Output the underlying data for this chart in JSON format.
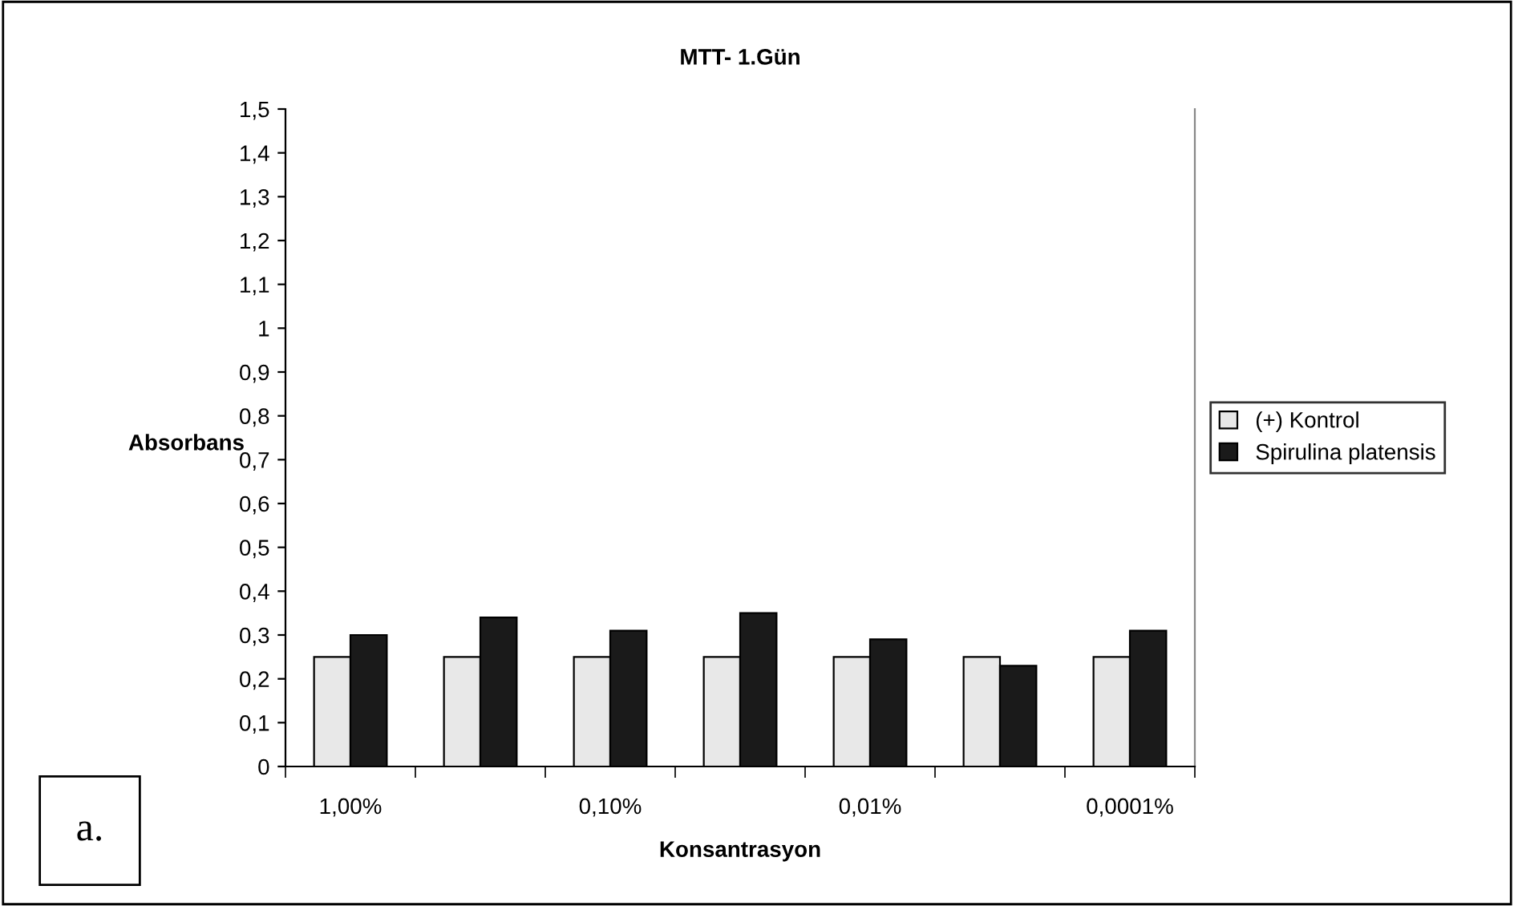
{
  "chart_data": {
    "type": "bar",
    "title": "MTT- 1.Gün",
    "xlabel": "Konsantrasyon",
    "ylabel": "Absorbans",
    "categories": [
      "1,00%",
      null,
      "0,10%",
      null,
      "0,01%",
      null,
      "0,0001%"
    ],
    "series": [
      {
        "name": "(+) Kontrol",
        "color": "#e8e8e8",
        "values": [
          0.25,
          0.25,
          0.25,
          0.25,
          0.25,
          0.25,
          0.25
        ]
      },
      {
        "name": "Spirulina platensis",
        "color": "#1a1a1a",
        "values": [
          0.3,
          0.34,
          0.31,
          0.35,
          0.29,
          0.23,
          0.31
        ]
      }
    ],
    "ylim": [
      0,
      1.5
    ],
    "yticks": [
      0,
      {
        "value": 0.1,
        "label": "0,1"
      },
      {
        "value": 0.2,
        "label": "0,2"
      },
      {
        "value": 0.3,
        "label": "0,3"
      },
      {
        "value": 0.4,
        "label": "0,4"
      },
      {
        "value": 0.5,
        "label": "0,5"
      },
      {
        "value": 0.6,
        "label": "0,6"
      },
      {
        "value": 0.7,
        "label": "0,7"
      },
      {
        "value": 0.8,
        "label": "0,8"
      },
      {
        "value": 0.9,
        "label": "0,9"
      },
      1,
      {
        "value": 1.1,
        "label": "1,1"
      },
      {
        "value": 1.2,
        "label": "1,2"
      },
      {
        "value": 1.3,
        "label": "1,3"
      },
      {
        "value": 1.4,
        "label": "1,4"
      },
      {
        "value": 1.5,
        "label": "1,5"
      }
    ],
    "annotations": [
      "a."
    ],
    "legend": "right",
    "grid": false
  }
}
